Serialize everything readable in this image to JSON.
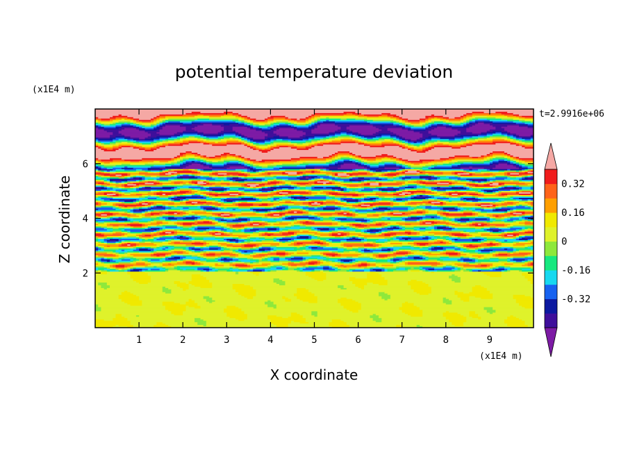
{
  "chart_data": {
    "type": "heatmap",
    "title": "potential temperature deviation",
    "xlabel": "X coordinate",
    "ylabel": "Z coordinate",
    "x_unit": "(x1E4 m)",
    "y_unit": "(x1E4 m)",
    "time_label": "t=2.9916e+06",
    "xlim": [
      0,
      10
    ],
    "ylim": [
      0,
      8
    ],
    "x_ticks": [
      1,
      2,
      3,
      4,
      5,
      6,
      7,
      8,
      9
    ],
    "y_ticks": [
      2,
      4,
      6
    ],
    "colorbar": {
      "levels": [
        -0.48,
        -0.4,
        -0.32,
        -0.24,
        -0.16,
        -0.08,
        0,
        0.08,
        0.16,
        0.24,
        0.32,
        0.4,
        0.48
      ],
      "tick_labels": [
        "0.32",
        "0.16",
        "0",
        "-0.16",
        "-0.32"
      ],
      "tick_values": [
        0.32,
        0.16,
        0,
        -0.16,
        -0.32
      ],
      "colors_low_to_high": [
        "#7d1ba5",
        "#3f0f9b",
        "#0c19a0",
        "#1762f0",
        "#17d8f0",
        "#17e87f",
        "#8ee83c",
        "#dff22b",
        "#f0e900",
        "#ff9f00",
        "#ff6319",
        "#f01c1c",
        "#f5a8a4"
      ]
    },
    "bands": [
      {
        "z_from": 0,
        "z_to": 2,
        "pattern": "green (0 to 0.08) with aqua-green patches"
      },
      {
        "z_from": 2,
        "z_to": 5.8,
        "pattern": "thin interleaved stripes of all levels"
      },
      {
        "z_from": 5.8,
        "z_to": 8,
        "pattern": "alternating purple (below -0.4) and pink (above 0.4) layers"
      }
    ]
  }
}
